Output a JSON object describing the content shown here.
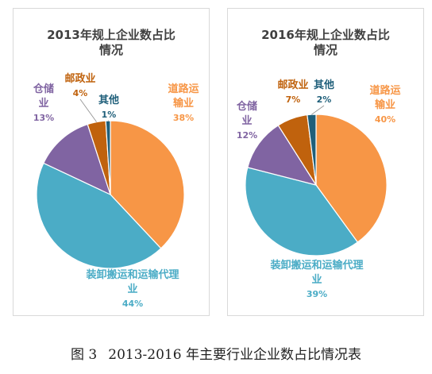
{
  "chart_data": [
    {
      "type": "pie",
      "title_lines": [
        "2013年规上企业数占比",
        "情况"
      ],
      "slices": [
        {
          "name": "道路运输业",
          "label_lines": [
            "道路运",
            "输业"
          ],
          "pct_label": "38%",
          "value": 38,
          "color": "#f79646"
        },
        {
          "name": "装卸搬运和运输代理业",
          "label_lines": [
            "装卸搬运和运输代理",
            "业"
          ],
          "pct_label": "44%",
          "value": 44,
          "color": "#4bacc6"
        },
        {
          "name": "仓储业",
          "label_lines": [
            "仓储",
            "业"
          ],
          "pct_label": "13%",
          "value": 13,
          "color": "#8064a2"
        },
        {
          "name": "邮政业",
          "label_lines": [
            "邮政业"
          ],
          "pct_label": "4%",
          "value": 4,
          "color": "#c0620d"
        },
        {
          "name": "其他",
          "label_lines": [
            "其他"
          ],
          "pct_label": "1%",
          "value": 1,
          "color": "#1f5f7a"
        }
      ]
    },
    {
      "type": "pie",
      "title_lines": [
        "2016年规上企业数占比",
        "情况"
      ],
      "slices": [
        {
          "name": "道路运输业",
          "label_lines": [
            "道路运",
            "输业"
          ],
          "pct_label": "40%",
          "value": 40,
          "color": "#f79646"
        },
        {
          "name": "装卸搬运和运输代理业",
          "label_lines": [
            "装卸搬运和运输代理",
            "业"
          ],
          "pct_label": "39%",
          "value": 39,
          "color": "#4bacc6"
        },
        {
          "name": "仓储业",
          "label_lines": [
            "仓储",
            "业"
          ],
          "pct_label": "12%",
          "value": 12,
          "color": "#8064a2"
        },
        {
          "name": "邮政业",
          "label_lines": [
            "邮政业"
          ],
          "pct_label": "7%",
          "value": 7,
          "color": "#c0620d"
        },
        {
          "name": "其他",
          "label_lines": [
            "其他"
          ],
          "pct_label": "2%",
          "value": 2,
          "color": "#1f5f7a"
        }
      ]
    }
  ],
  "caption": {
    "figure_no": "图 3",
    "text": "2013-2016 年主要行业企业数占比情况表"
  }
}
